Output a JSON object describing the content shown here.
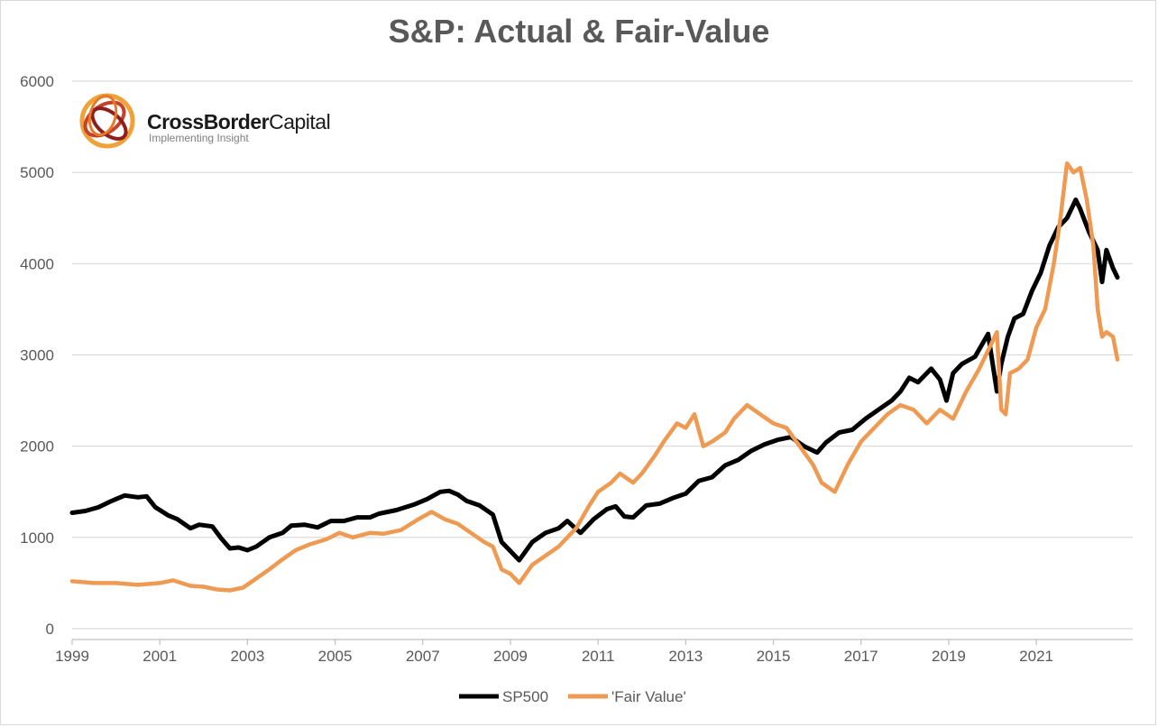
{
  "chart_data": {
    "type": "line",
    "title": "S&P: Actual & Fair-Value",
    "xlabel": "",
    "ylabel": "",
    "xlim": [
      1999,
      2023.2
    ],
    "ylim": [
      0,
      6000
    ],
    "yticks": [
      0,
      1000,
      2000,
      3000,
      4000,
      5000,
      6000
    ],
    "xticks": [
      1999,
      2001,
      2003,
      2005,
      2007,
      2009,
      2011,
      2013,
      2015,
      2017,
      2019,
      2021
    ],
    "grid": "horizontal",
    "legend": "bottom-center",
    "series": [
      {
        "name": "SP500",
        "color": "#000000",
        "x": [
          1999.0,
          1999.3,
          1999.6,
          1999.9,
          2000.2,
          2000.5,
          2000.7,
          2000.9,
          2001.2,
          2001.4,
          2001.7,
          2001.9,
          2002.2,
          2002.4,
          2002.6,
          2002.8,
          2003.0,
          2003.2,
          2003.5,
          2003.8,
          2004.0,
          2004.3,
          2004.6,
          2004.9,
          2005.2,
          2005.5,
          2005.8,
          2006.0,
          2006.4,
          2006.8,
          2007.1,
          2007.4,
          2007.6,
          2007.8,
          2008.0,
          2008.3,
          2008.6,
          2008.8,
          2009.0,
          2009.2,
          2009.5,
          2009.8,
          2010.1,
          2010.3,
          2010.6,
          2010.9,
          2011.2,
          2011.4,
          2011.6,
          2011.8,
          2012.1,
          2012.4,
          2012.7,
          2013.0,
          2013.3,
          2013.6,
          2013.9,
          2014.2,
          2014.5,
          2014.8,
          2015.1,
          2015.4,
          2015.7,
          2016.0,
          2016.2,
          2016.5,
          2016.8,
          2017.1,
          2017.4,
          2017.7,
          2017.9,
          2018.1,
          2018.3,
          2018.6,
          2018.8,
          2018.95,
          2019.1,
          2019.3,
          2019.6,
          2019.9,
          2020.1,
          2020.2,
          2020.35,
          2020.5,
          2020.7,
          2020.9,
          2021.1,
          2021.3,
          2021.5,
          2021.7,
          2021.9,
          2022.0,
          2022.2,
          2022.4,
          2022.5,
          2022.6,
          2022.75,
          2022.85
        ],
        "y": [
          1270,
          1290,
          1330,
          1400,
          1460,
          1440,
          1450,
          1330,
          1240,
          1200,
          1100,
          1140,
          1120,
          990,
          880,
          890,
          860,
          900,
          1000,
          1050,
          1130,
          1140,
          1110,
          1180,
          1180,
          1220,
          1220,
          1260,
          1300,
          1360,
          1420,
          1500,
          1510,
          1470,
          1400,
          1350,
          1250,
          950,
          850,
          750,
          950,
          1050,
          1100,
          1180,
          1050,
          1200,
          1310,
          1340,
          1230,
          1220,
          1350,
          1370,
          1430,
          1480,
          1620,
          1660,
          1790,
          1850,
          1950,
          2020,
          2070,
          2100,
          2000,
          1930,
          2040,
          2150,
          2180,
          2300,
          2400,
          2500,
          2600,
          2750,
          2700,
          2850,
          2730,
          2500,
          2800,
          2900,
          2980,
          3230,
          2600,
          2900,
          3200,
          3400,
          3450,
          3700,
          3900,
          4200,
          4400,
          4500,
          4700,
          4600,
          4350,
          4150,
          3800,
          4150,
          3950,
          3850
        ]
      },
      {
        "name": "'Fair Value'",
        "color": "#EE9A52",
        "x": [
          1999.0,
          1999.5,
          2000.0,
          2000.5,
          2001.0,
          2001.3,
          2001.7,
          2002.0,
          2002.3,
          2002.6,
          2002.9,
          2003.2,
          2003.5,
          2003.8,
          2004.1,
          2004.4,
          2004.8,
          2005.1,
          2005.4,
          2005.8,
          2006.1,
          2006.5,
          2006.9,
          2007.2,
          2007.5,
          2007.8,
          2008.1,
          2008.4,
          2008.6,
          2008.8,
          2009.0,
          2009.2,
          2009.5,
          2009.8,
          2010.1,
          2010.3,
          2010.5,
          2010.8,
          2011.0,
          2011.3,
          2011.5,
          2011.8,
          2012.0,
          2012.3,
          2012.5,
          2012.8,
          2013.0,
          2013.2,
          2013.4,
          2013.6,
          2013.9,
          2014.1,
          2014.4,
          2014.7,
          2015.0,
          2015.3,
          2015.6,
          2015.9,
          2016.1,
          2016.4,
          2016.7,
          2017.0,
          2017.3,
          2017.6,
          2017.9,
          2018.2,
          2018.5,
          2018.8,
          2019.1,
          2019.4,
          2019.7,
          2019.95,
          2020.1,
          2020.2,
          2020.3,
          2020.4,
          2020.6,
          2020.8,
          2021.0,
          2021.2,
          2021.4,
          2021.55,
          2021.7,
          2021.85,
          2022.0,
          2022.15,
          2022.3,
          2022.4,
          2022.5,
          2022.6,
          2022.75,
          2022.85
        ],
        "y": [
          520,
          500,
          500,
          480,
          500,
          530,
          470,
          460,
          430,
          420,
          450,
          550,
          650,
          760,
          860,
          920,
          980,
          1050,
          1000,
          1050,
          1040,
          1080,
          1200,
          1280,
          1200,
          1150,
          1050,
          950,
          900,
          650,
          600,
          500,
          700,
          800,
          900,
          1000,
          1100,
          1350,
          1500,
          1600,
          1700,
          1600,
          1700,
          1900,
          2050,
          2250,
          2200,
          2350,
          2000,
          2050,
          2150,
          2300,
          2450,
          2350,
          2250,
          2200,
          2000,
          1800,
          1600,
          1500,
          1800,
          2050,
          2200,
          2350,
          2450,
          2400,
          2250,
          2400,
          2300,
          2600,
          2850,
          3100,
          3250,
          2400,
          2350,
          2800,
          2850,
          2950,
          3300,
          3500,
          4000,
          4500,
          5100,
          5000,
          5050,
          4700,
          4200,
          3500,
          3200,
          3250,
          3200,
          2950
        ]
      }
    ]
  },
  "logo": {
    "name_bold": "CrossBorder",
    "name_regular": "Capital",
    "tagline": "Implementing Insight"
  }
}
